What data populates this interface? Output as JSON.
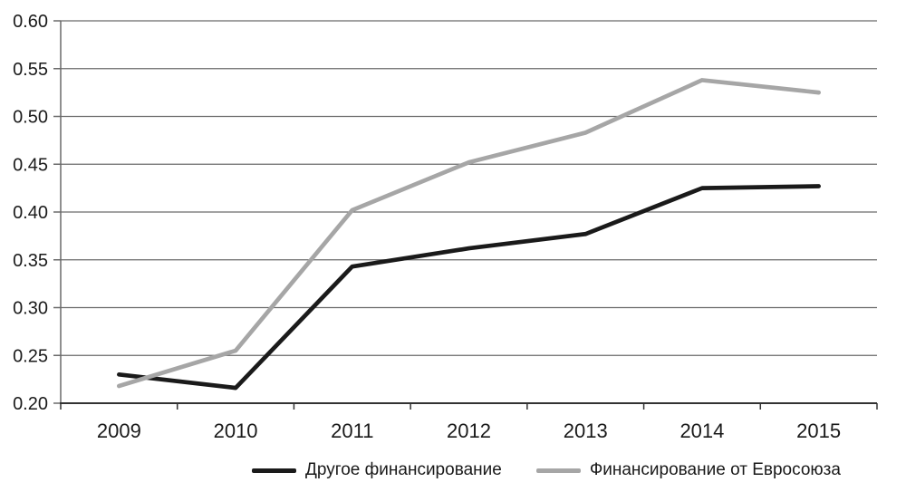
{
  "chart_data": {
    "type": "line",
    "title": "",
    "xlabel": "",
    "ylabel": "",
    "categories": [
      "2009",
      "2010",
      "2011",
      "2012",
      "2013",
      "2014",
      "2015"
    ],
    "series": [
      {
        "name": "Другое финансирование",
        "color": "#1a1a1a",
        "values": [
          0.23,
          0.216,
          0.343,
          0.362,
          0.377,
          0.425,
          0.427
        ]
      },
      {
        "name": "Финансирование от Евросоюза",
        "color": "#a6a6a6",
        "values": [
          0.218,
          0.255,
          0.402,
          0.452,
          0.483,
          0.538,
          0.525
        ]
      }
    ],
    "ylim": [
      0.2,
      0.6
    ],
    "ytick_step": 0.05,
    "ytick_labels": [
      "0.20",
      "0.25",
      "0.30",
      "0.35",
      "0.40",
      "0.45",
      "0.50",
      "0.55",
      "0.60"
    ],
    "grid": "horizontal",
    "legend_position": "bottom"
  },
  "colors": {
    "background": "#ffffff",
    "gridline": "#6a6a6a",
    "axis": "#333333",
    "text": "#1a1a1a"
  }
}
